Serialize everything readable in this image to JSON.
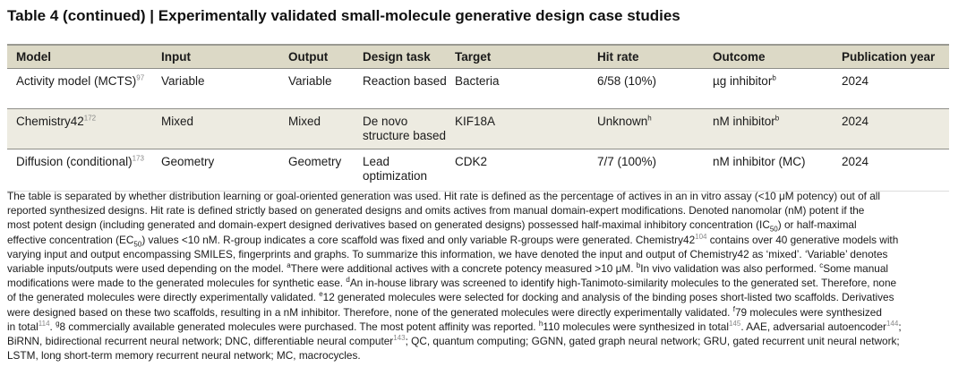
{
  "title": "Table 4 (continued) | Experimentally validated small-molecule generative design case studies",
  "table": {
    "headers": [
      "Model",
      "Input",
      "Output",
      "Design task",
      "Target",
      "Hit rate",
      "Outcome",
      "Publication year"
    ],
    "rows": [
      [
        {
          "t": "Activity model (MCTS)",
          "ref": "97"
        },
        {
          "t": "Variable"
        },
        {
          "t": "Variable"
        },
        {
          "t": "Reaction based"
        },
        {
          "t": "Bacteria"
        },
        {
          "t": "6/58 (10%)"
        },
        {
          "t": "µg inhibitor",
          "note": "b"
        },
        {
          "t": "2024"
        }
      ],
      [
        {
          "t": "Chemistry42",
          "ref": "172"
        },
        {
          "t": "Mixed"
        },
        {
          "t": "Mixed"
        },
        {
          "t": "De novo structure based"
        },
        {
          "t": "KIF18A"
        },
        {
          "t": "Unknown",
          "note": "h"
        },
        {
          "t": "nM inhibitor",
          "note": "b"
        },
        {
          "t": "2024"
        }
      ],
      [
        {
          "t": "Diffusion (conditional)",
          "ref": "173"
        },
        {
          "t": "Geometry"
        },
        {
          "t": "Geometry"
        },
        {
          "t": "Lead optimization"
        },
        {
          "t": "CDK2"
        },
        {
          "t": "7/7 (100%)"
        },
        {
          "t": "nM inhibitor (MC)"
        },
        {
          "t": "2024"
        }
      ]
    ]
  },
  "footnotes": [
    [
      {
        "t": "The table is separated by whether distribution learning or goal-oriented generation was used. Hit rate is defined as the percentage of actives in an in vitro assay (<10 μM potency) out of all"
      }
    ],
    [
      {
        "t": "reported synthesized designs. Hit rate is defined strictly based on generated designs and omits actives from manual domain-expert modifications. Denoted nanomolar (nM) potent if the"
      }
    ],
    [
      {
        "t": "most potent design (including generated and domain-expert designed derivatives based on generated designs) possessed half-maximal inhibitory concentration (IC"
      },
      {
        "sub": "50"
      },
      {
        "t": ") or half-maximal"
      }
    ],
    [
      {
        "t": "effective concentration (EC"
      },
      {
        "sub": "50"
      },
      {
        "t": ") values <10 nM. R-group indicates a core scaffold was fixed and only variable R-groups were generated. Chemistry42"
      },
      {
        "ref": "104"
      },
      {
        "t": " contains over 40 generative models with"
      }
    ],
    [
      {
        "t": "varying input and output encompassing SMILES, fingerprints and graphs. To summarize this information, we have denoted the input and output of Chemistry42 as ‘mixed’. ‘Variable’ denotes"
      }
    ],
    [
      {
        "t": "variable inputs/outputs were used depending on the model. "
      },
      {
        "sup": "a"
      },
      {
        "t": "There were additional actives with a concrete potency measured >10 μM. "
      },
      {
        "sup": "b"
      },
      {
        "t": "In vivo validation was also performed. "
      },
      {
        "sup": "c"
      },
      {
        "t": "Some manual"
      }
    ],
    [
      {
        "t": "modifications were made to the generated molecules for synthetic ease. "
      },
      {
        "sup": "d"
      },
      {
        "t": "An in-house library was screened to identify high-Tanimoto-similarity molecules to the generated set. Therefore, none"
      }
    ],
    [
      {
        "t": "of the generated molecules were directly experimentally validated. "
      },
      {
        "sup": "e"
      },
      {
        "t": "12 generated molecules were selected for docking and analysis of the binding poses short-listed two scaffolds. Derivatives"
      }
    ],
    [
      {
        "t": "were designed based on these two scaffolds, resulting in a nM inhibitor. Therefore, none of the generated molecules were directly experimentally validated. "
      },
      {
        "sup": "f"
      },
      {
        "t": "79 molecules were synthesized"
      }
    ],
    [
      {
        "t": "in total"
      },
      {
        "ref": "114"
      },
      {
        "t": ". "
      },
      {
        "sup": "g"
      },
      {
        "t": "8 commercially available generated molecules were purchased. The most potent affinity was reported. "
      },
      {
        "sup": "h"
      },
      {
        "t": "110 molecules were synthesized in total"
      },
      {
        "ref": "145"
      },
      {
        "t": ". AAE, adversarial autoencoder"
      },
      {
        "ref": "144"
      },
      {
        "t": ";"
      }
    ],
    [
      {
        "t": "BiRNN, bidirectional recurrent neural network; DNC, differentiable neural computer"
      },
      {
        "ref": "143"
      },
      {
        "t": "; QC, quantum computing; GGNN, gated graph neural network; GRU, gated recurrent unit neural network;"
      }
    ],
    [
      {
        "t": "LSTM, long short-term memory recurrent neural network; MC, macrocycles."
      }
    ]
  ],
  "colors": {
    "header_bg": "#dcd9c6",
    "alt_row_bg": "#edebe1",
    "ref_color": "#888888"
  }
}
